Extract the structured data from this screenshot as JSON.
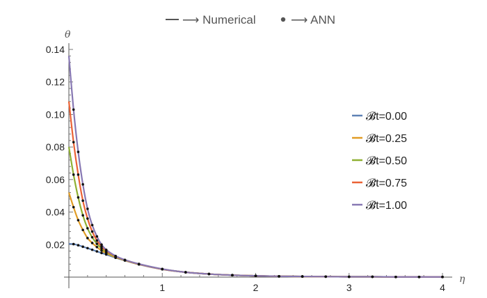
{
  "chart_data": {
    "type": "line",
    "title": "",
    "xlabel": "η",
    "ylabel": "θ",
    "xlim": [
      0,
      4
    ],
    "ylim": [
      0,
      0.14
    ],
    "x_ticks": [
      "1",
      "2",
      "3",
      "4"
    ],
    "y_ticks": [
      "0.02",
      "0.04",
      "0.06",
      "0.08",
      "0.10",
      "0.12",
      "0.14"
    ],
    "grid": false,
    "top_legend": {
      "line_text": "⟶ Numerical",
      "dot_text": "⟶ ANN"
    },
    "legend_position": "right",
    "x": [
      0,
      0.05,
      0.1,
      0.15,
      0.2,
      0.25,
      0.3,
      0.35,
      0.4,
      0.5,
      0.6,
      0.75,
      1.0,
      1.25,
      1.5,
      1.75,
      2.0,
      2.25,
      2.5,
      2.75,
      3.0,
      3.25,
      3.5,
      3.75,
      4.0
    ],
    "series": [
      {
        "name": "𝓑t=0.00",
        "color": "#5e81b5",
        "values": [
          0.0205,
          0.0203,
          0.0196,
          0.0187,
          0.0178,
          0.0168,
          0.0158,
          0.0148,
          0.0139,
          0.0119,
          0.0102,
          0.0078,
          0.0048,
          0.003,
          0.0019,
          0.0012,
          0.0008,
          0.0005,
          0.0004,
          0.0003,
          0.0002,
          0.0002,
          0.0001,
          0.0001,
          0.0001
        ]
      },
      {
        "name": "𝓑t=0.25",
        "color": "#e19c24",
        "values": [
          0.052,
          0.043,
          0.035,
          0.029,
          0.024,
          0.021,
          0.0185,
          0.0163,
          0.0147,
          0.0122,
          0.0103,
          0.0079,
          0.0049,
          0.003,
          0.0019,
          0.0012,
          0.0008,
          0.0005,
          0.0004,
          0.0003,
          0.0002,
          0.0002,
          0.0001,
          0.0001,
          0.0001
        ]
      },
      {
        "name": "𝓑t=0.50",
        "color": "#8fb032",
        "values": [
          0.08,
          0.063,
          0.049,
          0.038,
          0.03,
          0.0245,
          0.0205,
          0.0176,
          0.0154,
          0.0125,
          0.0104,
          0.008,
          0.0049,
          0.003,
          0.0019,
          0.0012,
          0.0008,
          0.0005,
          0.0004,
          0.0003,
          0.0002,
          0.0002,
          0.0001,
          0.0001,
          0.0001
        ]
      },
      {
        "name": "𝓑t=0.75",
        "color": "#eb6235",
        "values": [
          0.108,
          0.083,
          0.063,
          0.047,
          0.036,
          0.028,
          0.0225,
          0.0188,
          0.0161,
          0.0128,
          0.0105,
          0.008,
          0.0049,
          0.003,
          0.0019,
          0.0012,
          0.0008,
          0.0005,
          0.0004,
          0.0003,
          0.0002,
          0.0002,
          0.0001,
          0.0001,
          0.0001
        ]
      },
      {
        "name": "𝓑t=1.00",
        "color": "#8778b3",
        "values": [
          0.136,
          0.103,
          0.077,
          0.057,
          0.042,
          0.032,
          0.025,
          0.02,
          0.0168,
          0.013,
          0.0106,
          0.0081,
          0.005,
          0.003,
          0.0019,
          0.0012,
          0.0008,
          0.0005,
          0.0004,
          0.0003,
          0.0002,
          0.0002,
          0.0001,
          0.0001,
          0.0001
        ]
      }
    ]
  }
}
